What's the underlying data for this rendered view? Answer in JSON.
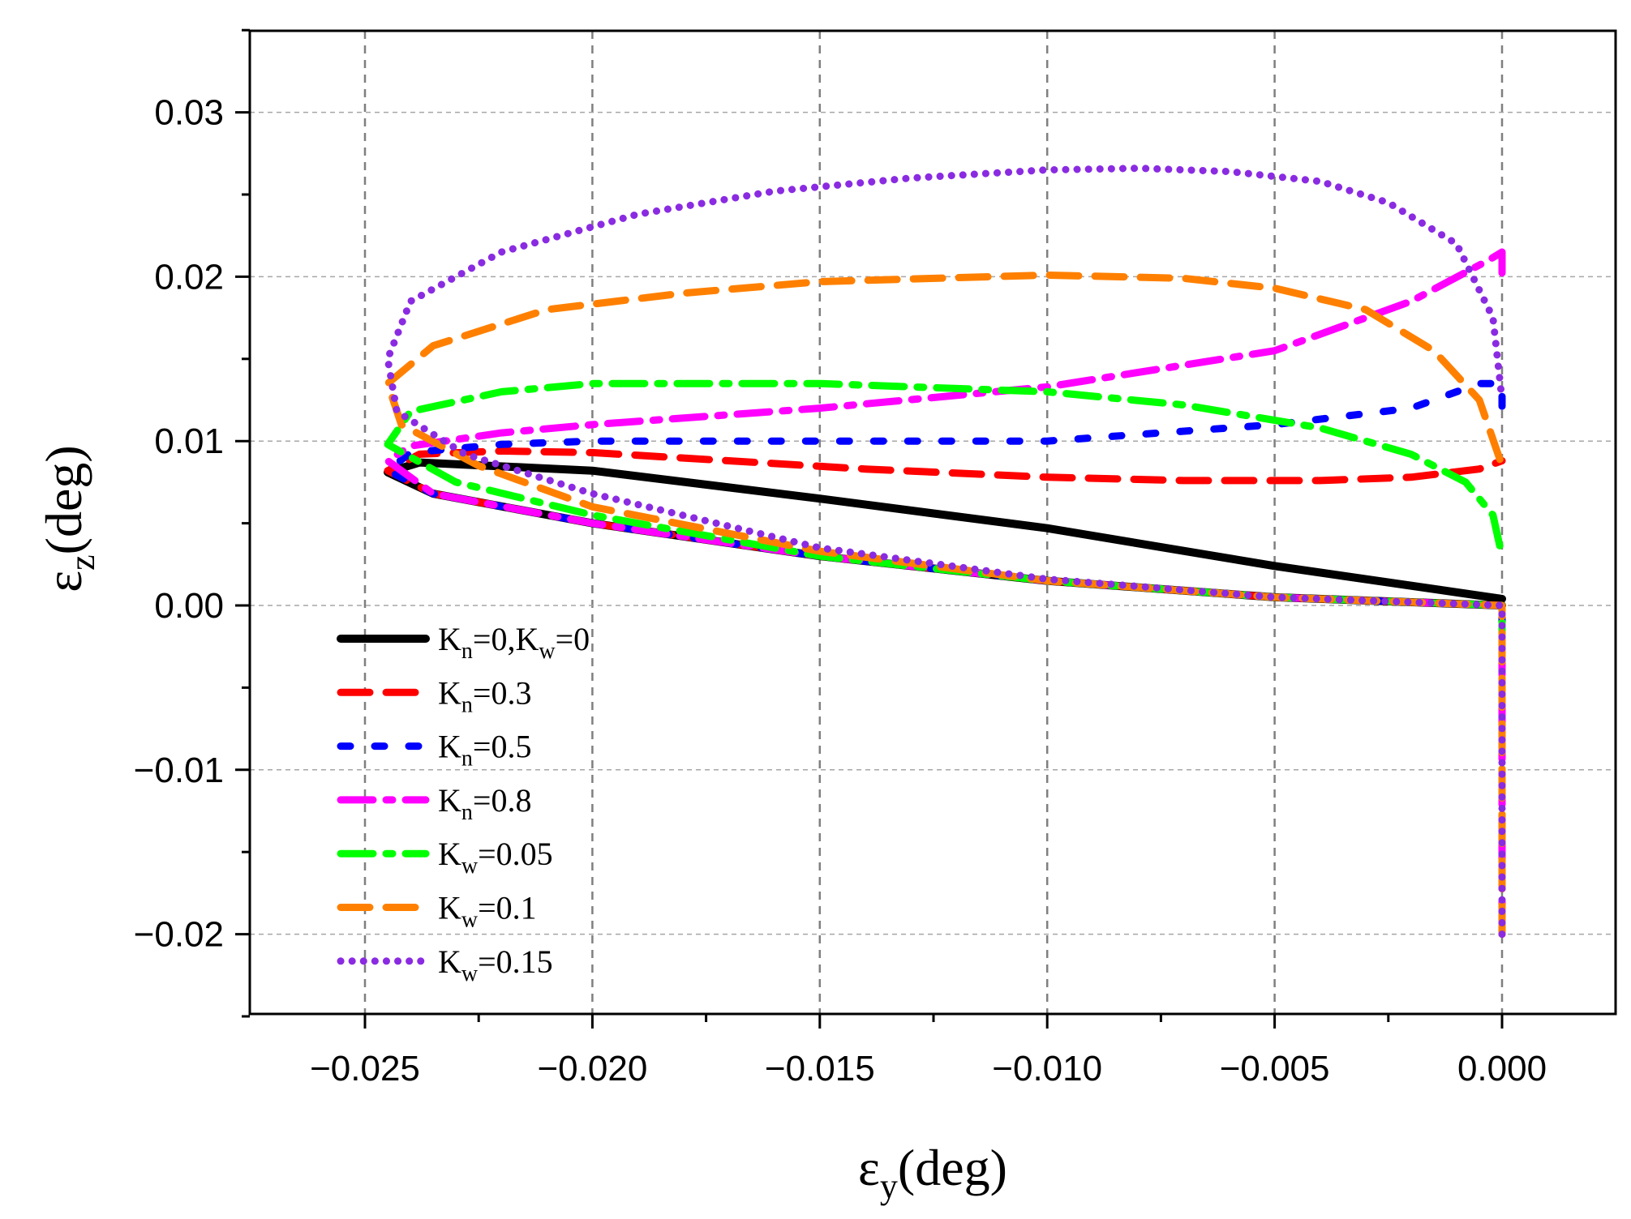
{
  "chart_data": {
    "type": "line",
    "title": "",
    "xlabel": {
      "symbol": "ε",
      "sub": "y",
      "unit": "(deg)"
    },
    "ylabel": {
      "symbol": "ε",
      "sub": "z",
      "unit": "(deg)"
    },
    "xlim": [
      -0.0275,
      0.0025
    ],
    "ylim": [
      -0.025,
      0.035
    ],
    "x_ticks": [
      -0.025,
      -0.02,
      -0.015,
      -0.01,
      -0.005,
      0.0
    ],
    "x_tick_labels": [
      "−0.025",
      "−0.020",
      "−0.015",
      "−0.010",
      "−0.005",
      "0.000"
    ],
    "y_ticks": [
      -0.02,
      -0.01,
      0.0,
      0.01,
      0.02,
      0.03
    ],
    "y_tick_labels": [
      "−0.02",
      "−0.01",
      "0.00",
      "0.01",
      "0.02",
      "0.03"
    ],
    "grid": true,
    "legend_position": "lower-left",
    "series": [
      {
        "name": "Kn=0,Kw=0",
        "label": [
          {
            "t": "K"
          },
          {
            "t": "n",
            "sub": true
          },
          {
            "t": "=0,K"
          },
          {
            "t": "w",
            "sub": true
          },
          {
            "t": "=0"
          }
        ],
        "color": "#000000",
        "style": "solid",
        "points": [
          [
            0,
            0
          ],
          [
            -0.005,
            0.0005
          ],
          [
            -0.01,
            0.0015
          ],
          [
            -0.015,
            0.003
          ],
          [
            -0.02,
            0.005
          ],
          [
            -0.0235,
            0.0068
          ],
          [
            -0.0245,
            0.0081
          ],
          [
            -0.0238,
            0.0087
          ],
          [
            -0.02,
            0.0082
          ],
          [
            -0.015,
            0.0065
          ],
          [
            -0.01,
            0.0047
          ],
          [
            -0.005,
            0.0024
          ],
          [
            0,
            0.0004
          ]
        ]
      },
      {
        "name": "Kn=0.3",
        "label": [
          {
            "t": "K"
          },
          {
            "t": "n",
            "sub": true
          },
          {
            "t": "=0.3"
          }
        ],
        "color": "#ff0000",
        "style": "dash",
        "points": [
          [
            0,
            -0.0018
          ],
          [
            0,
            0
          ],
          [
            -0.005,
            0.0005
          ],
          [
            -0.01,
            0.0015
          ],
          [
            -0.015,
            0.003
          ],
          [
            -0.02,
            0.005
          ],
          [
            -0.0235,
            0.0068
          ],
          [
            -0.0245,
            0.0082
          ],
          [
            -0.0238,
            0.0092
          ],
          [
            -0.022,
            0.0094
          ],
          [
            -0.02,
            0.0093
          ],
          [
            -0.017,
            0.0088
          ],
          [
            -0.014,
            0.0083
          ],
          [
            -0.01,
            0.0078
          ],
          [
            -0.007,
            0.0076
          ],
          [
            -0.004,
            0.0076
          ],
          [
            -0.002,
            0.0078
          ],
          [
            -0.0005,
            0.0083
          ],
          [
            0,
            0.0088
          ]
        ]
      },
      {
        "name": "Kn=0.5",
        "label": [
          {
            "t": "K"
          },
          {
            "t": "n",
            "sub": true
          },
          {
            "t": "=0.5"
          }
        ],
        "color": "#0000ff",
        "style": "dot-dash",
        "points": [
          [
            0,
            -0.003
          ],
          [
            0,
            0
          ],
          [
            -0.005,
            0.0005
          ],
          [
            -0.01,
            0.0015
          ],
          [
            -0.015,
            0.003
          ],
          [
            -0.02,
            0.005
          ],
          [
            -0.0235,
            0.0068
          ],
          [
            -0.0245,
            0.0082
          ],
          [
            -0.024,
            0.0093
          ],
          [
            -0.022,
            0.0098
          ],
          [
            -0.02,
            0.01
          ],
          [
            -0.015,
            0.01
          ],
          [
            -0.01,
            0.01
          ],
          [
            -0.005,
            0.011
          ],
          [
            -0.002,
            0.012
          ],
          [
            -0.0005,
            0.0135
          ],
          [
            0,
            0.0135
          ],
          [
            0,
            0.012
          ]
        ]
      },
      {
        "name": "Kn=0.8",
        "label": [
          {
            "t": "K"
          },
          {
            "t": "n",
            "sub": true
          },
          {
            "t": "=0.8"
          }
        ],
        "color": "#ff00ff",
        "style": "dash-dot",
        "points": [
          [
            0,
            -0.02
          ],
          [
            0,
            0
          ],
          [
            -0.005,
            0.0005
          ],
          [
            -0.01,
            0.0015
          ],
          [
            -0.015,
            0.003
          ],
          [
            -0.02,
            0.005
          ],
          [
            -0.0235,
            0.0068
          ],
          [
            -0.0245,
            0.0088
          ],
          [
            -0.024,
            0.0097
          ],
          [
            -0.022,
            0.0105
          ],
          [
            -0.02,
            0.011
          ],
          [
            -0.015,
            0.012
          ],
          [
            -0.01,
            0.0133
          ],
          [
            -0.005,
            0.0155
          ],
          [
            -0.002,
            0.0185
          ],
          [
            -0.0003,
            0.021
          ],
          [
            0,
            0.0215
          ],
          [
            0,
            0.0195
          ]
        ]
      },
      {
        "name": "Kw=0.05",
        "label": [
          {
            "t": "K"
          },
          {
            "t": "w",
            "sub": true
          },
          {
            "t": "=0.05"
          }
        ],
        "color": "#00ff00",
        "style": "dash-dot",
        "points": [
          [
            0,
            -0.003
          ],
          [
            0,
            0
          ],
          [
            -0.005,
            0.0005
          ],
          [
            -0.01,
            0.0015
          ],
          [
            -0.015,
            0.003
          ],
          [
            -0.02,
            0.0055
          ],
          [
            -0.023,
            0.0075
          ],
          [
            -0.0245,
            0.0098
          ],
          [
            -0.024,
            0.0118
          ],
          [
            -0.022,
            0.013
          ],
          [
            -0.02,
            0.0135
          ],
          [
            -0.015,
            0.0135
          ],
          [
            -0.01,
            0.013
          ],
          [
            -0.007,
            0.0122
          ],
          [
            -0.004,
            0.0108
          ],
          [
            -0.002,
            0.0092
          ],
          [
            -0.0008,
            0.0075
          ],
          [
            -0.0002,
            0.0055
          ],
          [
            0,
            0.003
          ]
        ]
      },
      {
        "name": "Kw=0.1",
        "label": [
          {
            "t": "K"
          },
          {
            "t": "w",
            "sub": true
          },
          {
            "t": "=0.1"
          }
        ],
        "color": "#ff8000",
        "style": "dash",
        "points": [
          [
            0,
            -0.02
          ],
          [
            0,
            0
          ],
          [
            -0.005,
            0.0005
          ],
          [
            -0.01,
            0.0015
          ],
          [
            -0.015,
            0.0033
          ],
          [
            -0.02,
            0.006
          ],
          [
            -0.0225,
            0.0085
          ],
          [
            -0.0242,
            0.011
          ],
          [
            -0.0245,
            0.0135
          ],
          [
            -0.0235,
            0.0158
          ],
          [
            -0.021,
            0.018
          ],
          [
            -0.018,
            0.019
          ],
          [
            -0.015,
            0.0197
          ],
          [
            -0.01,
            0.0201
          ],
          [
            -0.007,
            0.0199
          ],
          [
            -0.005,
            0.0193
          ],
          [
            -0.003,
            0.018
          ],
          [
            -0.0015,
            0.0155
          ],
          [
            -0.0005,
            0.0125
          ],
          [
            0,
            0.0085
          ]
        ]
      },
      {
        "name": "Kw=0.15",
        "label": [
          {
            "t": "K"
          },
          {
            "t": "w",
            "sub": true
          },
          {
            "t": "=0.15"
          }
        ],
        "color": "#8a2be2",
        "style": "dot",
        "points": [
          [
            0,
            -0.02
          ],
          [
            0,
            0
          ],
          [
            -0.005,
            0.0005
          ],
          [
            -0.01,
            0.0016
          ],
          [
            -0.015,
            0.0035
          ],
          [
            -0.02,
            0.0068
          ],
          [
            -0.0228,
            0.0092
          ],
          [
            -0.0243,
            0.0118
          ],
          [
            -0.0245,
            0.015
          ],
          [
            -0.024,
            0.0185
          ],
          [
            -0.022,
            0.0215
          ],
          [
            -0.019,
            0.0238
          ],
          [
            -0.016,
            0.0252
          ],
          [
            -0.013,
            0.026
          ],
          [
            -0.01,
            0.0265
          ],
          [
            -0.008,
            0.0266
          ],
          [
            -0.006,
            0.0264
          ],
          [
            -0.004,
            0.0258
          ],
          [
            -0.0025,
            0.0245
          ],
          [
            -0.001,
            0.022
          ],
          [
            -0.0002,
            0.0175
          ],
          [
            0,
            0.0125
          ]
        ]
      }
    ]
  }
}
